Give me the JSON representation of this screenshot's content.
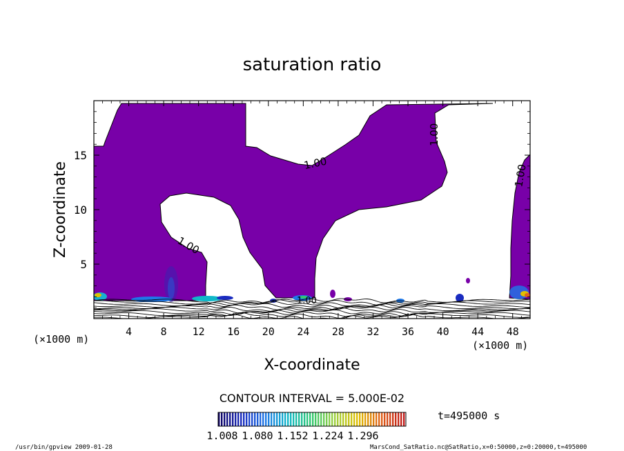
{
  "chart_data": {
    "type": "contour",
    "title": "saturation ratio",
    "xlabel": "X-coordinate",
    "ylabel": "Z-coordinate",
    "x_unit_left": "(×1000 m)",
    "x_unit_right": "(×1000 m)",
    "xlim": [
      0,
      50
    ],
    "ylim": [
      0,
      20
    ],
    "x_ticks": [
      4,
      8,
      12,
      16,
      20,
      24,
      28,
      32,
      36,
      40,
      44,
      48
    ],
    "y_ticks": [
      5,
      10,
      15
    ],
    "contour_level_labels": [
      "1.00",
      "1.00",
      "1.00",
      "1.00",
      "1.00"
    ],
    "contour_interval_label": "CONTOUR INTERVAL = 5.000E-02",
    "colorbar_ticks": [
      "1.008",
      "1.080",
      "1.152",
      "1.224",
      "1.296"
    ],
    "time_label": "t=495000  s",
    "colors": {
      "fill": "#7800a8",
      "contour_line": "#000000",
      "colorbar": [
        "#0a0060",
        "#1a2cc0",
        "#1e78e8",
        "#10b8c8",
        "#30c870",
        "#9ed040",
        "#e0c000",
        "#e06018",
        "#c01818"
      ]
    }
  },
  "footer": {
    "left": "/usr/bin/gpview  2009-01-28",
    "right": "MarsCond_SatRatio.nc@SatRatio,x=0:50000,z=0:20000,t=495000"
  }
}
